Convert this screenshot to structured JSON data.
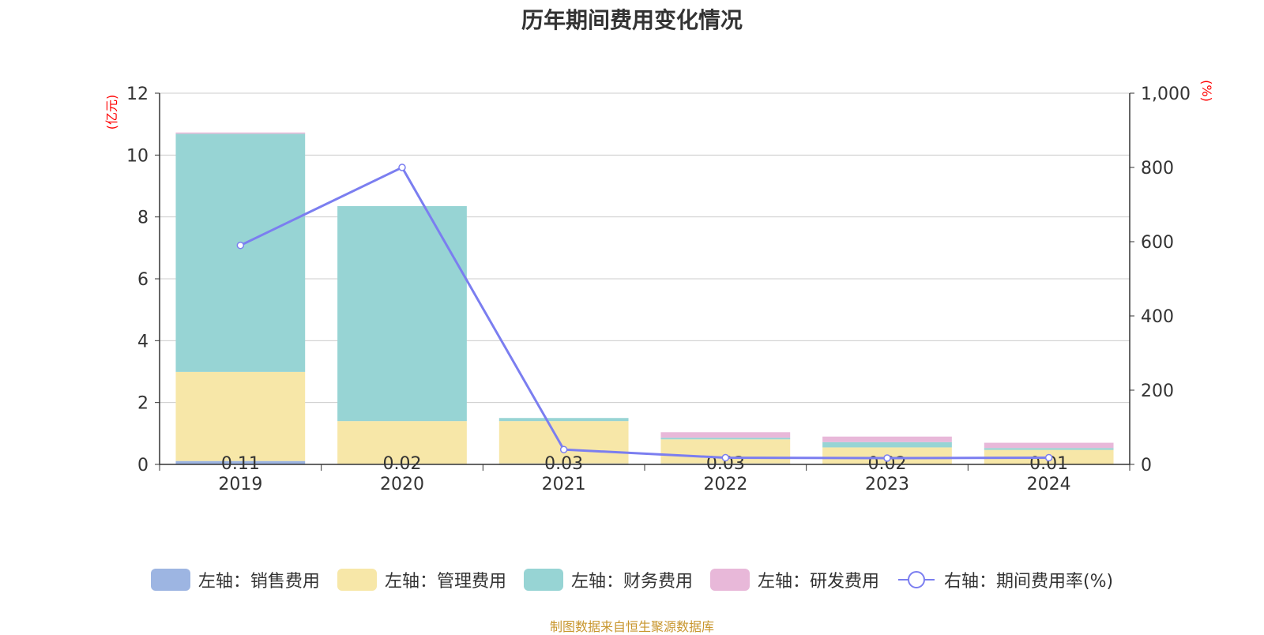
{
  "chart_data": {
    "type": "bar",
    "title": "历年期间费用变化情况",
    "categories": [
      "2019",
      "2020",
      "2021",
      "2022",
      "2023",
      "2024"
    ],
    "series": [
      {
        "name": "左轴：销售费用",
        "axis": "left",
        "kind": "bar",
        "color": "#9db5e2",
        "values": [
          0.11,
          0.02,
          0.03,
          0.03,
          0.02,
          0.01
        ]
      },
      {
        "name": "左轴：管理费用",
        "axis": "left",
        "kind": "bar",
        "color": "#f7e7a8",
        "values": [
          2.88,
          1.38,
          1.37,
          0.78,
          0.53,
          0.46
        ]
      },
      {
        "name": "左轴：财务费用",
        "axis": "left",
        "kind": "bar",
        "color": "#97d4d4",
        "values": [
          7.7,
          6.95,
          0.1,
          0.05,
          0.17,
          0.06
        ]
      },
      {
        "name": "左轴：研发费用",
        "axis": "left",
        "kind": "bar",
        "color": "#e8b8d9",
        "values": [
          0.04,
          0.0,
          0.0,
          0.18,
          0.18,
          0.17
        ]
      },
      {
        "name": "右轴：期间费用率(%)",
        "axis": "right",
        "kind": "line",
        "color": "#7b7ef0",
        "values": [
          590,
          800,
          40,
          18,
          17,
          18
        ]
      }
    ],
    "data_labels": [
      "0.11",
      "0.02",
      "0.03",
      "0.03",
      "0.02",
      "0.01"
    ],
    "left_axis": {
      "unit": "(亿元)",
      "ylim": [
        0,
        12
      ],
      "ticks": [
        "0",
        "2",
        "4",
        "6",
        "8",
        "10",
        "12"
      ]
    },
    "right_axis": {
      "unit": "(%)",
      "ylim": [
        0,
        1000
      ],
      "ticks": [
        "0",
        "200",
        "400",
        "600",
        "800",
        "1,000"
      ]
    },
    "grid": true,
    "legend_position": "bottom"
  },
  "footer": {
    "source": "制图数据来自恒生聚源数据库"
  }
}
